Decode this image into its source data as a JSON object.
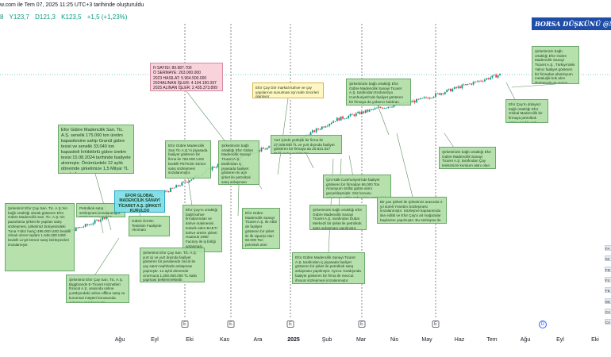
{
  "header": {
    "title": "w.com ile Tem 07, 2025 11:25 UTC+3 tarihinde oluşturuldu",
    "ohlc": [
      "8",
      "Y123,7",
      "D121,3",
      "K123,5",
      "+1,5 (+1,23%)"
    ]
  },
  "brand": {
    "text": "BORSA DÜŞKÜNÜ @Mo"
  },
  "colors": {
    "up": "#089981",
    "down": "#f23645",
    "accent": "#2962ff"
  },
  "notes": [
    "Şirketimiz Efor Çay San. Tic. A.Ş.'nin bağlı ortaklığı olarak gösteren Efor Gübre Madencilik San. Tic. A.Ş.'nin pazarlama şirketi ile yapılan satış sözleşmesi, şirketimiz bünyesindeki Tuna Yıldız hariç) 495.000 USD bedelli olmak üzere toplam 1.645.000 USD bedelli Linyit kömür satış sözleşmeleri imzalamıştır.",
    "Petrolkok satış sözleşmesi imzalanmıştır. Sözleşmenin toplam bedeli 12.009.100 USD'dir.",
    "Efor Gübre Madencilik San. Tic. A.Ş. senelik 175.000 ton üretim kapasitesine sahip Granül gübre tesisi ve senelik 33.040 ton kapasiteli İnhibitörlü gübre üretim tesisi 15.08.2024 tarihinde faaliyete alınmıştır. Önümüzdeki 12 aylık dönemde şirketimize 1,5 Milyar TL ciro katkısı yapması beklenmektedir.",
    "Şirketimiz Efor Çay San. Tic. A.Ş. Biggbrands E-Ticaret Hizmetleri İhracat A.Ş. arasında online yurtdışındaki online-offline satış ve kurumsal müşteri konusunda anlaşma imzalanmıştır.",
    "EFOR GLOBAL MADENCİLİK SANAYİ TİCARET A.Ş. ŞİRKETİ KURULDU",
    "Gübre Üretim Tesisinin Faaliyete Alınması",
    "Efor Gübre Madencilik San.Tic.A.Ş.'ni piyasada faaliyet gösteren bir firma ile 760.000 USD bedelli PETKOK kömür satış sözleşmesi imzalanmıştır.",
    "Efor Çay'ın ortaklığı bağlı kahve firmalarından ve kahve makinesini tedarik eden BAETI kahve üretim şirketi Haatouk 1960 Factory ile iş birliği anlaşması imzalandı.",
    "Şirketimiz Efor Çay San. Tic. A.Ş. yurt içi ve yurt dışında faaliyet gösteren bir perakende zinciri ile çay satım taahhüdü anlaşması yapmıştır. 12 aylık dönemde cirormuza 1.300.000.000 TL katkı yapması beklenmektedir.",
    "Şirketimizin bağlı ortaklığı Efor Gübre Madencilik Sanayi Ticaret A.Ş. tarafından iç piyasada faaliyet gösteren iki ayrı şirket ile petrolkok satış anlaşması yapılmıştır. 76.261.000 TL",
    "Efor Gübre Madencilik Sanayi Ticaret A.Ş. ile ABD de faaliyet gösteren bir şirket ile ilk siparişi olan 50.000 Ton petrokok alım sözleşmesi imzalanmış. 420.000.000 TL",
    "Efor Çay Dör markalı kahve ve çay yapılarının sunulması için kafe zincirleri planlıyor",
    "Yurt içinde yerleşik bir firma ile 27.049.540 TL ve yurt dışında faaliyet gösteren bir firmaya da 20.821.027 TL'lik satış yapılmıştır.",
    "Çin Halk Cumhuriyeti'nde faaliyet gösteren bir firmadan 66.000 Ton Amonyum Sülfat gübre alımı gerçekleşmiştir. Söz konusu amonyum sülfat gübresinin toplam bir firma ile 92.376 TL'lik satış anlaşması imzalanmıştır.",
    "Şirketimizin bağlı ortaklığı Efor Gübre Madencilik Sanayi Ticaret A.Ş. tarafından Dubai Merkezli bir şirket ile petrolkok satış anlaşması yapılmıştır. Petrolkok satışının bedeli güncel kurla 1.912.500 USD.",
    "Efor Gübre Madencilik Sanayi Ticaret A.Ş. tarafından iç piyasada faaliyet gösteren bir şirket ile petrolkok satış anlaşması yapılmıştır. Ayrıca Yurtdışında faaliyet gösteren bir firma ile mevcut ihracat sözleşmesi imzalanmıştır. 285.861.442 TL'lik (7.786.886 USD)",
    "Şirketimizin bağlı ortaklığı Efor Gübre Madencilik Sanayi Ticaret A.Ş. tarafından Endonezya Cumhuriyeti'nde faaliyet gösteren bir firmaya da yabancı kaldıran petrolkok kütle satış sözleşmesi imzalanmıştır. 340.503.300 TL",
    "Bir yan Şirketi ile Şirketimiz arasında 2 yıl süreli Yönetim Sözleşmesi imzalanmıştır. Sözleşme kapsamında ilan edildi ve Efor Çay'a ait mağazalar bayilerine yapılmıştır. Bu sözleşme ile şirketimizin yıllık 1,2 milyar TL'lik ek ciro artışı beklenmektedir.",
    "Şirketimizin bağlı ortaklığı Efor Gübre Madencilik Sanayi Ticaret A.Ş. tarafından Çay tesisimizin kurulum alanı olan (Çaykur) bir tarafından ürün satışı sözleşmesi imzalanmıştır. Satışın bedeli 281.160.000 TL'dir.",
    "Şirketimizin bağlı ortaklığı Efor Gübre Madencilik Sanayi Ticaret A.Ş., Türkiye'deki Yalnız faaliyet gösteren bir firmadan alüminyum metalurjik kok alım ithalatında ve uygun teklifi verecek Ihaleyi kazanmıştır. Satış bedeli 294.885.000 TL'dir.",
    "Efor Çay'ın dolaysız bağlı ortaklığı Efor Global Madencilik bir firmaya petrolkok satışı yapıldı. 4,7 MİLYON USD"
  ],
  "finance_box": [
    "H SAYISI: 89.987.700",
    "Ö SERMAYE: 263.000.000",
    "2023 HASILAT: 5.964.500.000",
    "2024ALINAN İŞLER: 4.104.190.397",
    "2025 ALINAN İŞLER: 2.435.373.899"
  ],
  "x_axis": {
    "ticks": [
      "Ağu",
      "Eyl",
      "Eki",
      "Kas",
      "Ara",
      "2025",
      "Şub",
      "Mar",
      "Nis",
      "May",
      "Haz",
      "Tem",
      "Ağu",
      "Eyl",
      "Eki"
    ]
  },
  "event_badges": [
    "E",
    "E",
    "E",
    "E",
    "E",
    "D"
  ],
  "right_tags": [
    "FA",
    "02",
    "FD",
    "F4",
    "FE",
    "0D",
    "C4",
    "C4"
  ],
  "chart_data": {
    "type": "line",
    "title": "",
    "xlabel": "",
    "ylabel": "",
    "x": [
      "Ağu",
      "Eyl",
      "Eki",
      "Kas",
      "Ara",
      "2025",
      "Şub",
      "Mar",
      "Nis",
      "May",
      "Haz",
      "Tem"
    ],
    "series": [
      {
        "values": [
          8,
          10,
          14,
          18,
          26,
          34,
          40,
          58,
          70,
          80,
          100,
          123.5
        ]
      }
    ],
    "last_value": 123.5,
    "grid": false,
    "legend": "none"
  }
}
